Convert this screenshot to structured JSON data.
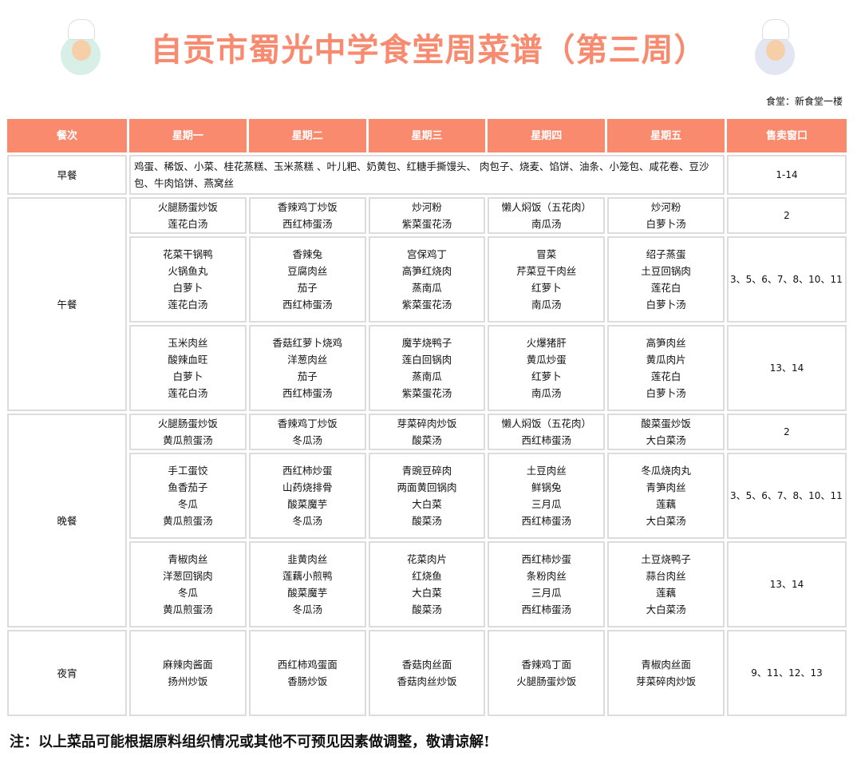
{
  "title": "自贡市蜀光中学食堂周菜谱（第三周）",
  "canteen": "食堂：新食堂一楼",
  "headers": [
    "餐次",
    "星期一",
    "星期二",
    "星期三",
    "星期四",
    "星期五",
    "售卖窗口"
  ],
  "breakfast": {
    "label": "早餐",
    "items": "鸡蛋、稀饭、小菜、桂花蒸糕、玉米蒸糕 、叶儿粑、奶黄包、红糖手撕馒头、 肉包子、烧麦、馅饼、油条、小笼包、咸花卷、豆沙包、牛肉馅饼、燕窝丝",
    "window": "1-14"
  },
  "lunch": {
    "label": "午餐",
    "rows": [
      {
        "days": [
          [
            "火腿肠蛋炒饭",
            "莲花白汤"
          ],
          [
            "香辣鸡丁炒饭",
            "西红柿蛋汤"
          ],
          [
            "炒河粉",
            "紫菜蛋花汤"
          ],
          [
            "懒人焖饭（五花肉）",
            "南瓜汤"
          ],
          [
            "炒河粉",
            "白萝卜汤"
          ]
        ],
        "window": "2"
      },
      {
        "days": [
          [
            "花菜干锅鸭",
            "火锅鱼丸",
            "白萝卜",
            "莲花白汤"
          ],
          [
            "香辣兔",
            "豆腐肉丝",
            "茄子",
            "西红柿蛋汤"
          ],
          [
            "宫保鸡丁",
            "高笋红烧肉",
            "蒸南瓜",
            "紫菜蛋花汤"
          ],
          [
            "冒菜",
            "芹菜豆干肉丝",
            "红萝卜",
            "南瓜汤"
          ],
          [
            "绍子蒸蛋",
            "土豆回锅肉",
            "莲花白",
            "白萝卜汤"
          ]
        ],
        "window": "3、5、6、7、8、10、11"
      },
      {
        "days": [
          [
            "玉米肉丝",
            "酸辣血旺",
            "白萝卜",
            "莲花白汤"
          ],
          [
            "香菇红萝卜烧鸡",
            "洋葱肉丝",
            "茄子",
            "西红柿蛋汤"
          ],
          [
            "魔芋烧鸭子",
            "莲白回锅肉",
            "蒸南瓜",
            "紫菜蛋花汤"
          ],
          [
            "火爆猪肝",
            "黄瓜炒蛋",
            "红萝卜",
            "南瓜汤"
          ],
          [
            "高笋肉丝",
            "黄瓜肉片",
            "莲花白",
            "白萝卜汤"
          ]
        ],
        "window": "13、14"
      }
    ]
  },
  "dinner": {
    "label": "晚餐",
    "rows": [
      {
        "days": [
          [
            "火腿肠蛋炒饭",
            "黄瓜煎蛋汤"
          ],
          [
            "香辣鸡丁炒饭",
            "冬瓜汤"
          ],
          [
            "芽菜碎肉炒饭",
            "酸菜汤"
          ],
          [
            "懒人焖饭（五花肉）",
            "西红柿蛋汤"
          ],
          [
            "酸菜蛋炒饭",
            "大白菜汤"
          ]
        ],
        "window": "2"
      },
      {
        "days": [
          [
            "手工蛋饺",
            "鱼香茄子",
            "冬瓜",
            "黄瓜煎蛋汤"
          ],
          [
            "西红柿炒蛋",
            "山药烧排骨",
            "酸菜魔芋",
            "冬瓜汤"
          ],
          [
            "青豌豆碎肉",
            "两面黄回锅肉",
            "大白菜",
            "酸菜汤"
          ],
          [
            "土豆肉丝",
            "鲜锅兔",
            "三月瓜",
            "西红柿蛋汤"
          ],
          [
            "冬瓜烧肉丸",
            "青笋肉丝",
            "莲藕",
            "大白菜汤"
          ]
        ],
        "window": "3、5、6、7、8、10、11"
      },
      {
        "days": [
          [
            "青椒肉丝",
            "洋葱回锅肉",
            "冬瓜",
            "黄瓜煎蛋汤"
          ],
          [
            "韭黄肉丝",
            "莲藕小煎鸭",
            "酸菜魔芋",
            "冬瓜汤"
          ],
          [
            "花菜肉片",
            "红烧鱼",
            "大白菜",
            "酸菜汤"
          ],
          [
            "西红柿炒蛋",
            "条粉肉丝",
            "三月瓜",
            "西红柿蛋汤"
          ],
          [
            "土豆烧鸭子",
            "蒜台肉丝",
            "莲藕",
            "大白菜汤"
          ]
        ],
        "window": "13、14"
      }
    ]
  },
  "night": {
    "label": "夜宵",
    "days": [
      [
        "麻辣肉酱面",
        "扬州炒饭"
      ],
      [
        "西红柿鸡蛋面",
        "香肠炒饭"
      ],
      [
        "香菇肉丝面",
        "香菇肉丝炒饭"
      ],
      [
        "香辣鸡丁面",
        "火腿肠蛋炒饭"
      ],
      [
        "青椒肉丝面",
        "芽菜碎肉炒饭"
      ]
    ],
    "window": "9、11、12、13"
  },
  "note": "注：以上菜品可能根据原料组织情况或其他不可预见因素做调整，敬请谅解!",
  "colors": {
    "accent": "#fa8a6e",
    "title": "#f88b6f",
    "border": "#dcdcdc"
  }
}
